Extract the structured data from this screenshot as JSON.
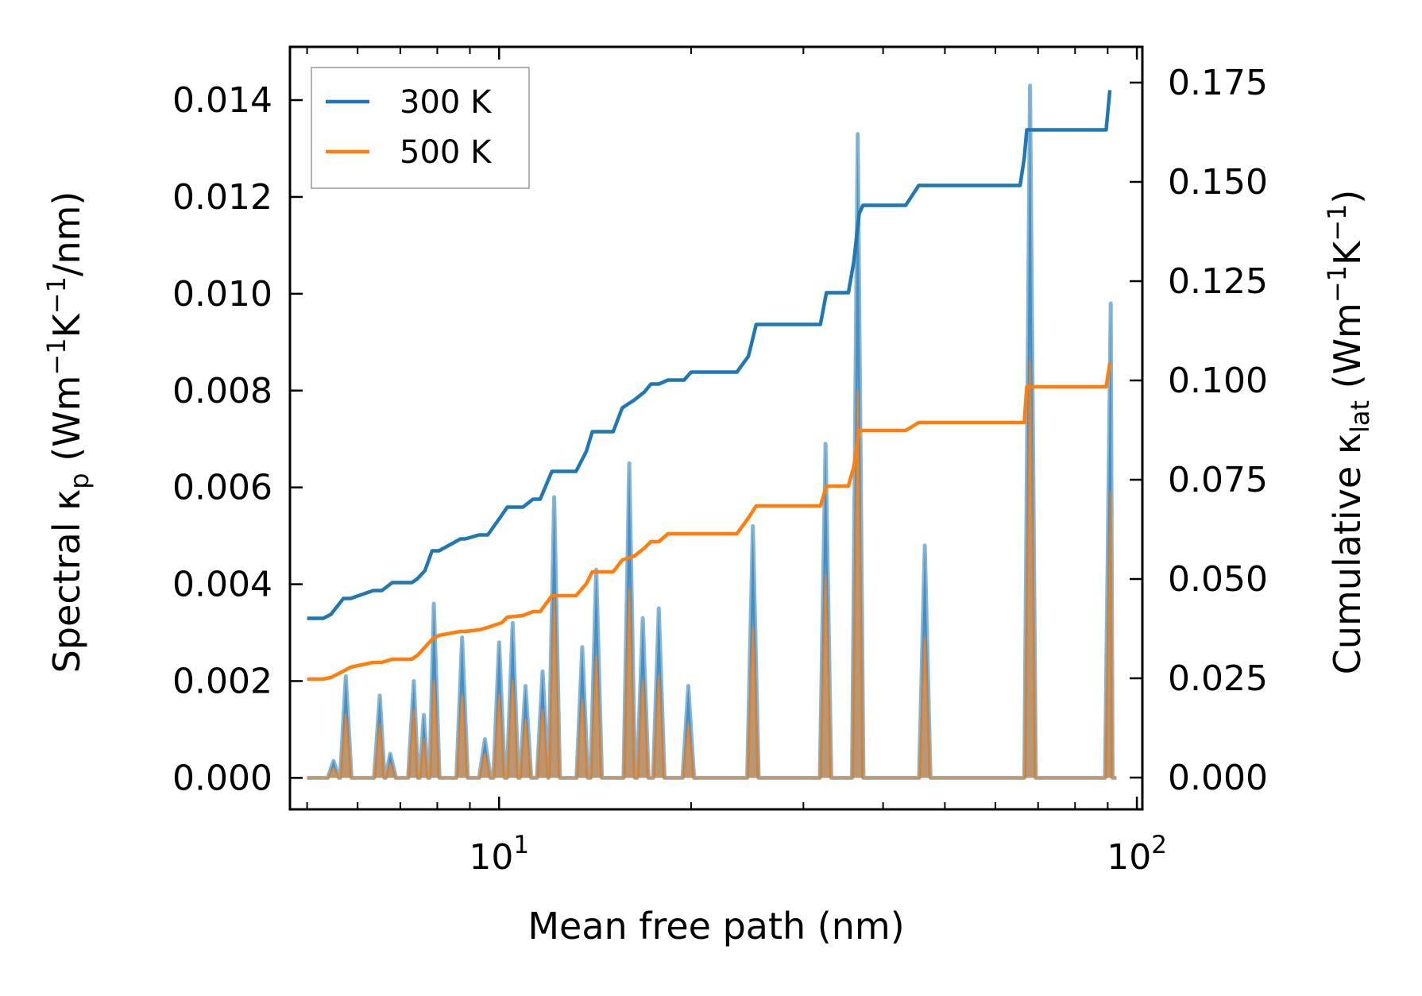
{
  "chart_data": {
    "type": "line",
    "xlabel": "Mean free path (nm)",
    "ylabel_left": {
      "main": "Spectral κ",
      "sub": "p",
      "unit_open": " (Wm",
      "sup1": "−1",
      "mid": "K",
      "sup2": "−1",
      "unit_close": "/nm)"
    },
    "ylabel_right": {
      "main": "Cumulative κ",
      "sub": "lat",
      "unit_open": " (Wm",
      "sup1": "−1",
      "mid": "K",
      "sup2": "−1",
      "unit_close": ")"
    },
    "x_scale": "log",
    "xlim": [
      4.7,
      102
    ],
    "ylim_left": [
      -0.00065,
      0.0151
    ],
    "ylim_right": [
      -0.008,
      0.184
    ],
    "x_ticks": [
      {
        "value": 10,
        "base": "10",
        "exp": "1"
      },
      {
        "value": 100,
        "base": "10",
        "exp": "2"
      }
    ],
    "y_left_ticks": [
      "0.000",
      "0.002",
      "0.004",
      "0.006",
      "0.008",
      "0.010",
      "0.012",
      "0.014"
    ],
    "y_right_ticks": [
      "0.000",
      "0.025",
      "0.050",
      "0.075",
      "0.100",
      "0.125",
      "0.150",
      "0.175"
    ],
    "legend_position": "top-left",
    "legend": [
      {
        "label": "300 K",
        "color": "#1f77b4"
      },
      {
        "label": "500 K",
        "color": "#ff7f0e"
      }
    ],
    "spectral_peaks": [
      {
        "x": 5.5,
        "v300": 0.00035,
        "v500": 0.0002
      },
      {
        "x": 5.75,
        "v300": 0.0021,
        "v500": 0.0013
      },
      {
        "x": 6.5,
        "v300": 0.0017,
        "v500": 0.0011
      },
      {
        "x": 6.75,
        "v300": 0.0005,
        "v500": 0.0003
      },
      {
        "x": 7.35,
        "v300": 0.002,
        "v500": 0.0014
      },
      {
        "x": 7.62,
        "v300": 0.0013,
        "v500": 0.0008
      },
      {
        "x": 7.9,
        "v300": 0.0036,
        "v500": 0.002
      },
      {
        "x": 8.75,
        "v300": 0.0029,
        "v500": 0.0017
      },
      {
        "x": 9.5,
        "v300": 0.0008,
        "v500": 0.0005
      },
      {
        "x": 10.0,
        "v300": 0.0028,
        "v500": 0.0017
      },
      {
        "x": 10.5,
        "v300": 0.0032,
        "v500": 0.002
      },
      {
        "x": 11.0,
        "v300": 0.0019,
        "v500": 0.0012
      },
      {
        "x": 11.7,
        "v300": 0.0022,
        "v500": 0.0014
      },
      {
        "x": 12.2,
        "v300": 0.0058,
        "v500": 0.0037
      },
      {
        "x": 13.5,
        "v300": 0.0027,
        "v500": 0.0016
      },
      {
        "x": 14.2,
        "v300": 0.0043,
        "v500": 0.0025
      },
      {
        "x": 16.0,
        "v300": 0.0065,
        "v500": 0.0039
      },
      {
        "x": 16.8,
        "v300": 0.0033,
        "v500": 0.002
      },
      {
        "x": 17.8,
        "v300": 0.0035,
        "v500": 0.0021
      },
      {
        "x": 19.8,
        "v300": 0.0019,
        "v500": 0.0011
      },
      {
        "x": 25.0,
        "v300": 0.0052,
        "v500": 0.0031
      },
      {
        "x": 32.5,
        "v300": 0.0069,
        "v500": 0.0042
      },
      {
        "x": 36.5,
        "v300": 0.0133,
        "v500": 0.008
      },
      {
        "x": 46.5,
        "v300": 0.0048,
        "v500": 0.0029
      },
      {
        "x": 68.0,
        "v300": 0.0143,
        "v500": 0.0086
      },
      {
        "x": 91.0,
        "v300": 0.0098,
        "v500": 0.0059
      }
    ],
    "cumulative_300K": {
      "x": [
        5.0,
        5.3,
        5.45,
        5.7,
        5.85,
        6.35,
        6.55,
        6.8,
        7.3,
        7.45,
        7.65,
        7.85,
        8.05,
        8.7,
        8.85,
        9.3,
        9.6,
        10.1,
        10.3,
        10.9,
        11.3,
        11.6,
        12.1,
        13.2,
        13.7,
        14.0,
        15.1,
        15.6,
        16.3,
        16.9,
        17.3,
        17.8,
        18.4,
        19.5,
        20.0,
        23.6,
        24.6,
        25.3,
        31.9,
        32.6,
        35.3,
        36.0,
        36.7,
        37.2,
        43.4,
        45.5,
        65.6,
        66.6,
        67.2,
        88.5,
        89.5,
        90.7
      ],
      "y": [
        0.0401,
        0.0401,
        0.0411,
        0.0451,
        0.0451,
        0.0471,
        0.0471,
        0.0491,
        0.0491,
        0.0501,
        0.0521,
        0.0571,
        0.0571,
        0.0601,
        0.0601,
        0.0611,
        0.0611,
        0.0661,
        0.0681,
        0.0681,
        0.0701,
        0.0701,
        0.0771,
        0.0771,
        0.0821,
        0.0871,
        0.0871,
        0.0931,
        0.0951,
        0.0971,
        0.0991,
        0.0991,
        0.1001,
        0.1001,
        0.1021,
        0.1021,
        0.1061,
        0.1141,
        0.1141,
        0.1221,
        0.1221,
        0.1301,
        0.1421,
        0.1441,
        0.1441,
        0.1491,
        0.1491,
        0.1561,
        0.1631,
        0.1631,
        0.1631,
        0.1731
      ]
    },
    "cumulative_500K": {
      "x": [
        5.0,
        5.3,
        5.45,
        5.7,
        5.85,
        6.35,
        6.55,
        6.8,
        7.3,
        7.45,
        7.65,
        7.85,
        8.05,
        8.7,
        8.85,
        9.3,
        9.6,
        10.1,
        10.3,
        10.9,
        11.3,
        11.6,
        12.1,
        13.2,
        13.7,
        14.0,
        15.1,
        15.6,
        16.3,
        16.9,
        17.3,
        17.8,
        18.4,
        19.5,
        20.0,
        23.6,
        24.6,
        25.3,
        31.9,
        32.6,
        35.3,
        36.0,
        36.7,
        37.2,
        43.4,
        45.5,
        65.6,
        66.6,
        67.2,
        88.5,
        89.5,
        90.7
      ],
      "y": [
        0.0248,
        0.0248,
        0.0252,
        0.0268,
        0.0278,
        0.029,
        0.029,
        0.0298,
        0.0298,
        0.0308,
        0.0328,
        0.0348,
        0.0358,
        0.0368,
        0.0368,
        0.0372,
        0.0378,
        0.039,
        0.0404,
        0.0408,
        0.0418,
        0.0418,
        0.0458,
        0.0458,
        0.0488,
        0.0518,
        0.0518,
        0.0548,
        0.0558,
        0.0578,
        0.0594,
        0.0594,
        0.0614,
        0.0614,
        0.0614,
        0.0614,
        0.0654,
        0.0684,
        0.0684,
        0.0734,
        0.0734,
        0.0784,
        0.0874,
        0.0874,
        0.0874,
        0.0894,
        0.0894,
        0.0894,
        0.0984,
        0.0984,
        0.0984,
        0.1044
      ]
    }
  }
}
